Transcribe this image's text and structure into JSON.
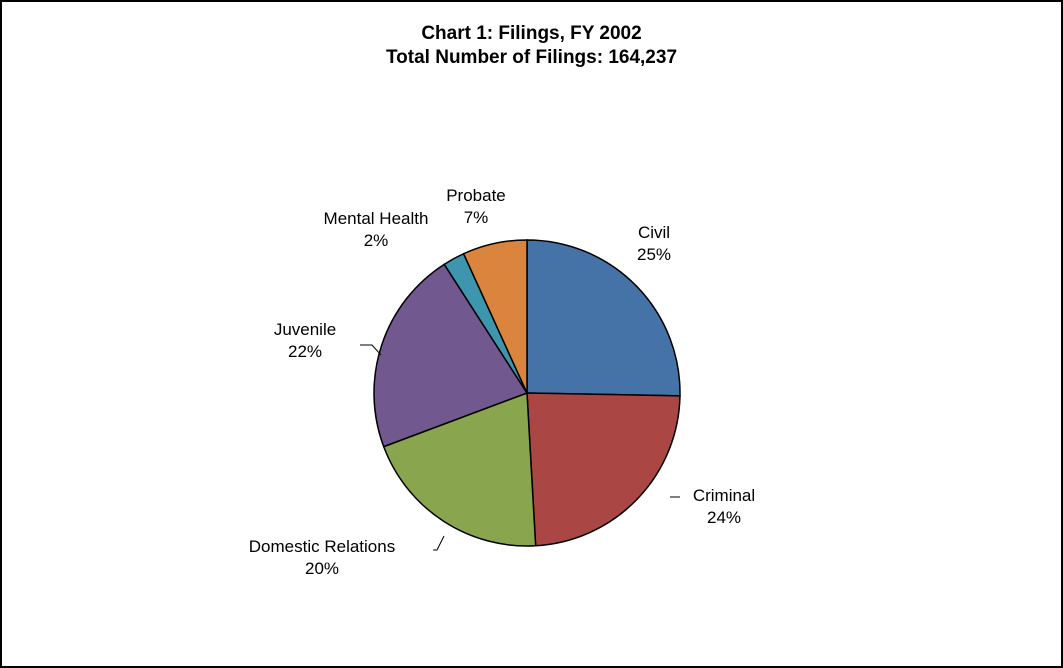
{
  "chart_data": {
    "type": "pie",
    "title": "Chart 1: Filings, FY 2002",
    "subtitle": "Total Number of Filings: 164,237",
    "slices": [
      {
        "label": "Civil",
        "percent_label": "25%",
        "value": 25.3,
        "color": "#4572A7"
      },
      {
        "label": "Criminal",
        "percent_label": "24%",
        "value": 23.8,
        "color": "#AA4643"
      },
      {
        "label": "Domestic Relations",
        "percent_label": "20%",
        "value": 20.2,
        "color": "#89A54E"
      },
      {
        "label": "Juvenile",
        "percent_label": "22%",
        "value": 21.6,
        "color": "#71588F"
      },
      {
        "label": "Mental Health",
        "percent_label": "2%",
        "value": 2.3,
        "color": "#3D96AE"
      },
      {
        "label": "Probate",
        "percent_label": "7%",
        "value": 6.8,
        "color": "#DB843D"
      }
    ],
    "legend": "none"
  }
}
